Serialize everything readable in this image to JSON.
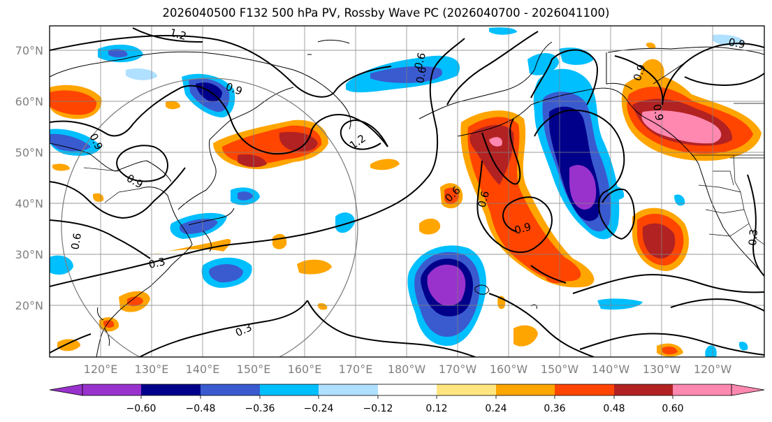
{
  "title": "2026040500 F132 500 hPa PV, Rossby Wave PC (2026040700 - 2026041100)",
  "map": {
    "lat_labels": [
      "70°N",
      "60°N",
      "50°N",
      "40°N",
      "30°N",
      "20°N"
    ],
    "lon_labels": [
      "120°E",
      "130°E",
      "140°E",
      "150°E",
      "160°E",
      "170°E",
      "180°W",
      "170°W",
      "160°W",
      "150°W",
      "140°W",
      "130°W",
      "120°W"
    ],
    "contour_labels": [
      "1.2",
      "0.9",
      "0.9",
      "0.9",
      "0.6",
      "0.6",
      "0.9",
      "1.2",
      "0.6",
      "0.6",
      "0.9",
      "0.3",
      "0.3",
      "0.3",
      "0.6",
      "0.9",
      "0.9"
    ]
  },
  "colorbar": {
    "colors": [
      "#9932cc",
      "#00008b",
      "#3a5bd0",
      "#00bfff",
      "#b0e0ff",
      "#ffffff",
      "#ffe680",
      "#ffa500",
      "#ff4500",
      "#b22222",
      "#ff88b0"
    ],
    "extend_low_color": "#9932cc",
    "extend_high_color": "#ff88b0",
    "tick_labels": [
      "−0.60",
      "−0.48",
      "−0.36",
      "−0.24",
      "−0.12",
      "0.12",
      "0.24",
      "0.36",
      "0.48",
      "0.60"
    ]
  }
}
